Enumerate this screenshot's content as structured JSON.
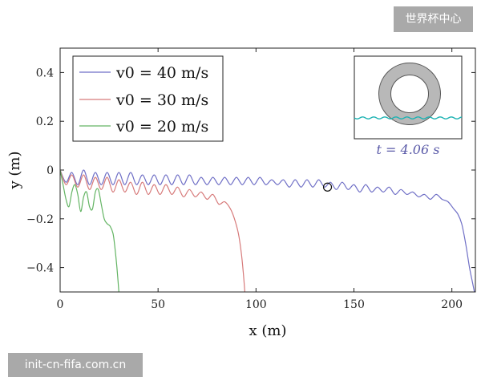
{
  "watermark_top": "世界杯中心",
  "watermark_bottom": "init-cn-fifa.com.cn",
  "inset": {
    "time_label": "t = 4.06 s"
  },
  "chart_data": {
    "type": "line",
    "title": "",
    "xlabel": "x (m)",
    "ylabel": "y (m)",
    "xlim": [
      0,
      212
    ],
    "ylim": [
      -0.5,
      0.5
    ],
    "xticks": [
      0,
      50,
      100,
      150,
      200
    ],
    "xtick_labels": [
      "0",
      "50",
      "100",
      "150",
      "200"
    ],
    "yticks": [
      0.4,
      0.2,
      0,
      -0.2,
      -0.4
    ],
    "ytick_labels": [
      "0.4",
      "0.2",
      "0",
      "−0.2",
      "−0.4"
    ],
    "legend_position": "top-left",
    "marker": {
      "x": 136.5,
      "y": -0.07
    },
    "series": [
      {
        "name": "v0 = 40 m/s",
        "color": "#6f6fc6",
        "x": [
          0,
          3,
          6,
          9,
          12,
          15,
          18,
          21,
          24,
          27,
          30,
          33,
          36,
          39,
          42,
          45,
          48,
          51,
          54,
          57,
          60,
          63,
          66,
          69,
          72,
          75,
          78,
          81,
          84,
          87,
          90,
          93,
          96,
          99,
          102,
          105,
          108,
          111,
          114,
          117,
          120,
          123,
          126,
          129,
          132,
          135,
          138,
          141,
          144,
          147,
          150,
          153,
          156,
          159,
          162,
          165,
          168,
          171,
          174,
          177,
          180,
          183,
          186,
          189,
          192,
          195,
          198,
          201,
          203,
          205,
          207,
          209,
          210.5,
          211.5
        ],
        "y": [
          0,
          -0.05,
          -0.01,
          -0.06,
          0.0,
          -0.06,
          -0.01,
          -0.06,
          -0.01,
          -0.06,
          -0.01,
          -0.06,
          -0.01,
          -0.06,
          -0.02,
          -0.06,
          -0.02,
          -0.06,
          -0.02,
          -0.06,
          -0.02,
          -0.06,
          -0.02,
          -0.06,
          -0.03,
          -0.06,
          -0.03,
          -0.06,
          -0.03,
          -0.06,
          -0.03,
          -0.06,
          -0.03,
          -0.06,
          -0.03,
          -0.06,
          -0.04,
          -0.06,
          -0.04,
          -0.07,
          -0.04,
          -0.07,
          -0.04,
          -0.07,
          -0.04,
          -0.07,
          -0.05,
          -0.08,
          -0.05,
          -0.08,
          -0.06,
          -0.09,
          -0.06,
          -0.09,
          -0.07,
          -0.09,
          -0.07,
          -0.1,
          -0.08,
          -0.1,
          -0.09,
          -0.11,
          -0.1,
          -0.12,
          -0.1,
          -0.12,
          -0.13,
          -0.16,
          -0.18,
          -0.22,
          -0.3,
          -0.4,
          -0.46,
          -0.5
        ]
      },
      {
        "name": "v0 = 30 m/s",
        "color": "#d77b7b",
        "x": [
          0,
          3,
          6,
          9,
          12,
          15,
          18,
          21,
          24,
          27,
          30,
          33,
          36,
          39,
          42,
          45,
          48,
          51,
          54,
          57,
          60,
          63,
          66,
          69,
          72,
          75,
          78,
          81,
          84,
          87,
          89,
          91,
          92.5,
          93.5,
          94.3
        ],
        "y": [
          0,
          -0.06,
          -0.02,
          -0.07,
          -0.02,
          -0.08,
          -0.03,
          -0.08,
          -0.03,
          -0.09,
          -0.04,
          -0.09,
          -0.05,
          -0.1,
          -0.05,
          -0.1,
          -0.06,
          -0.1,
          -0.06,
          -0.1,
          -0.07,
          -0.11,
          -0.08,
          -0.11,
          -0.09,
          -0.12,
          -0.1,
          -0.14,
          -0.13,
          -0.16,
          -0.2,
          -0.26,
          -0.34,
          -0.42,
          -0.5
        ]
      },
      {
        "name": "v0 = 20 m/s",
        "color": "#63b463",
        "x": [
          0,
          1.5,
          3,
          4.5,
          6,
          7.5,
          9,
          10.5,
          12,
          13.5,
          15,
          16.5,
          18,
          19.5,
          21,
          22.5,
          24,
          25.5,
          27,
          28,
          29,
          30
        ],
        "y": [
          0,
          -0.06,
          -0.12,
          -0.15,
          -0.09,
          -0.06,
          -0.1,
          -0.17,
          -0.11,
          -0.09,
          -0.15,
          -0.16,
          -0.09,
          -0.08,
          -0.14,
          -0.2,
          -0.22,
          -0.23,
          -0.26,
          -0.32,
          -0.4,
          -0.5
        ]
      }
    ]
  }
}
